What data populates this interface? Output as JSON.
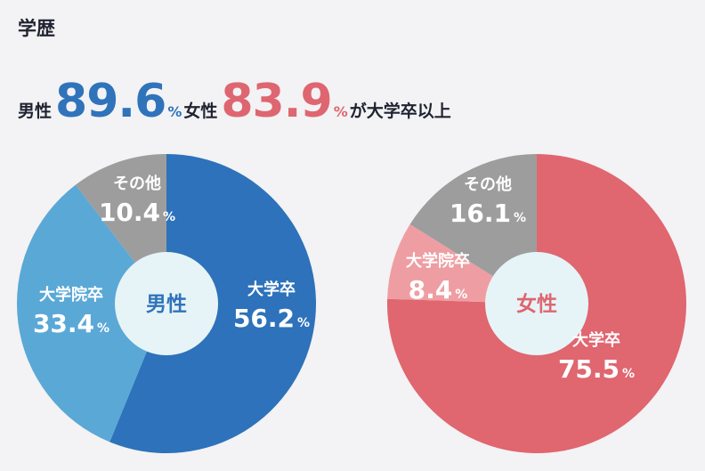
{
  "heading": "学歴",
  "headline": {
    "male_label": "男性",
    "male_value": "89.6",
    "female_label": "女性",
    "female_value": "83.9",
    "percent_sign": "%",
    "suffix": "が大学卒以上"
  },
  "colors": {
    "male_accent": "#2f73bb",
    "female_accent": "#de6670",
    "center": "#e6f4f7"
  },
  "chart_data": [
    {
      "type": "pie",
      "center_label": "男性",
      "center_color": "#2f73bb",
      "slices": [
        {
          "label": "大学卒",
          "value": 56.2,
          "display": "56.2",
          "color": "#2d72ba"
        },
        {
          "label": "大学院卒",
          "value": 33.4,
          "display": "33.4",
          "color": "#5aa8d6"
        },
        {
          "label": "その他",
          "value": 10.4,
          "display": "10.4",
          "color": "#9d9d9d"
        }
      ]
    },
    {
      "type": "pie",
      "center_label": "女性",
      "center_color": "#de6670",
      "slices": [
        {
          "label": "大学卒",
          "value": 75.5,
          "display": "75.5",
          "color": "#e0666f"
        },
        {
          "label": "大学院卒",
          "value": 8.4,
          "display": "8.4",
          "color": "#ee9ea2"
        },
        {
          "label": "その他",
          "value": 16.1,
          "display": "16.1",
          "color": "#9d9d9d"
        }
      ]
    }
  ]
}
